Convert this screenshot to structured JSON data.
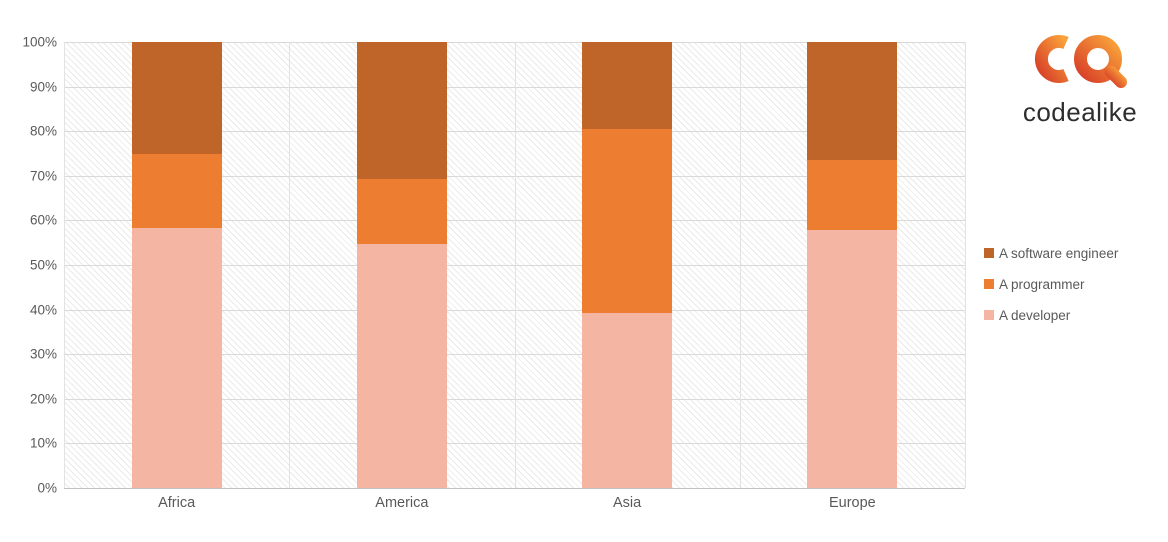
{
  "logo": {
    "text": "codealike",
    "icon": "codealike-ca-mark",
    "gradient_start": "#D84028",
    "gradient_end": "#F9A23A",
    "text_color": "#2E2E2E"
  },
  "chart_data": {
    "type": "bar",
    "subtype": "stacked-100-percent",
    "title": "",
    "categories": [
      "Africa",
      "America",
      "Asia",
      "Europe"
    ],
    "series": [
      {
        "name": "A software engineer",
        "color": "#C0652A",
        "values": [
          25.0,
          30.8,
          19.6,
          26.4
        ]
      },
      {
        "name": "A programmer",
        "color": "#ED7D31",
        "values": [
          16.6,
          14.5,
          41.1,
          15.8
        ]
      },
      {
        "name": "A developer",
        "color": "#F4B6A3",
        "values": [
          58.4,
          54.7,
          39.3,
          57.8
        ]
      }
    ],
    "xlabel": "",
    "ylabel": "",
    "ylim": [
      0,
      100
    ],
    "y_axis": {
      "ticks": [
        "100%",
        "90%",
        "80%",
        "70%",
        "60%",
        "50%",
        "40%",
        "30%",
        "20%",
        "10%",
        "0%"
      ],
      "step": 10,
      "format": "percent"
    },
    "legend": {
      "position": "right"
    },
    "grid": true,
    "plot_background": "diagonal-hatch",
    "axis_text_color": "#595959",
    "gridline_color": "#D9D9D9"
  }
}
